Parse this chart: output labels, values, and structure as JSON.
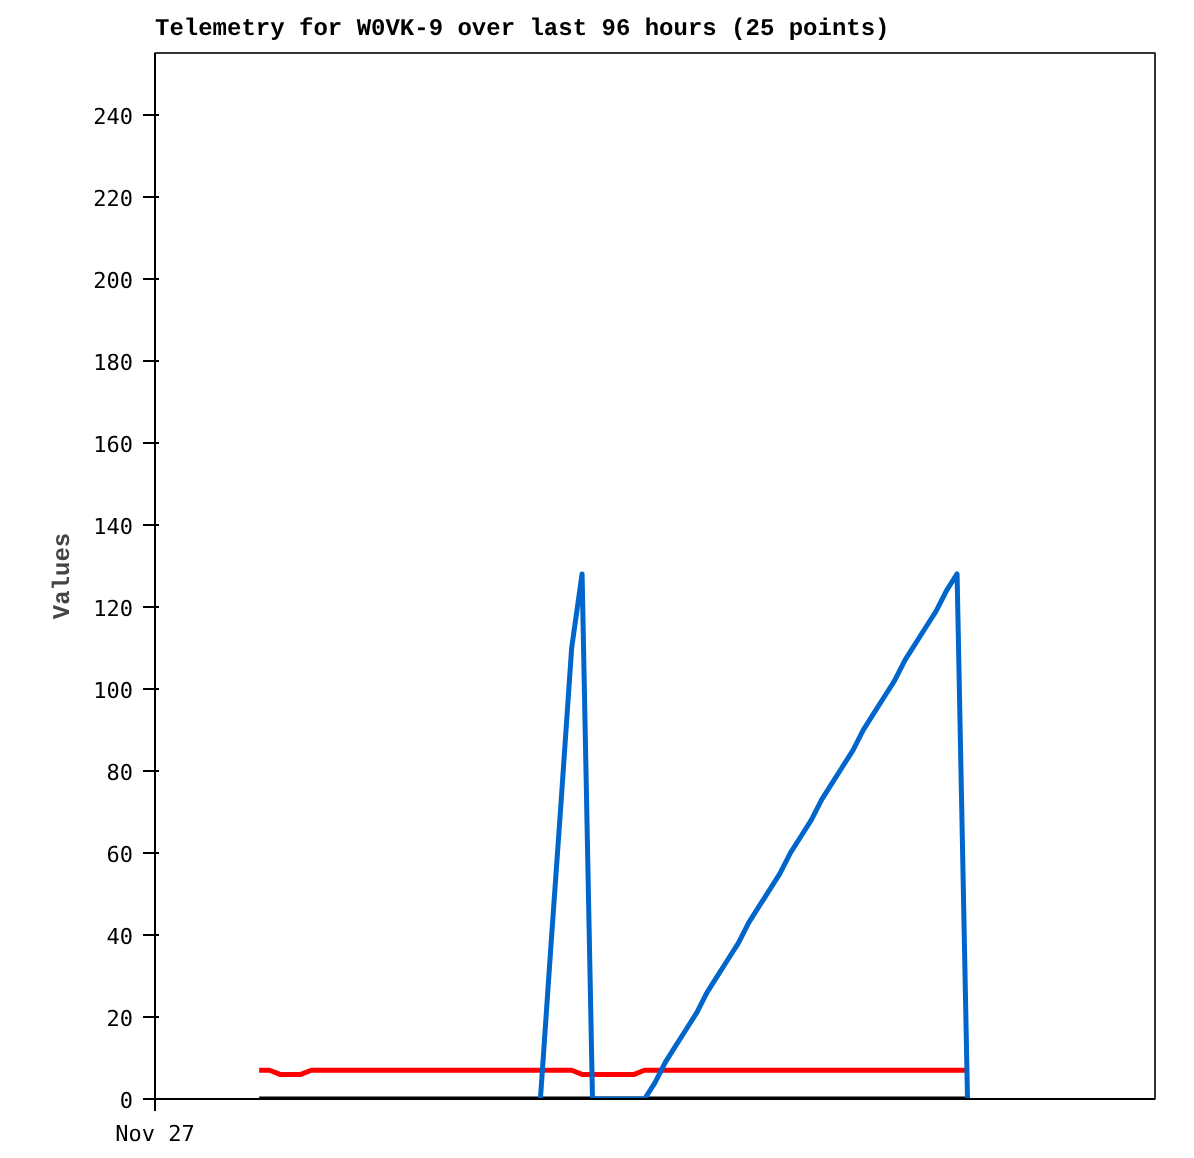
{
  "chart_data": {
    "type": "line",
    "title": "Telemetry for W0VK-9 over last 96 hours (25 points)",
    "ylabel": "Values",
    "categories": [
      "Nov 27",
      null,
      null,
      null,
      null,
      null,
      null,
      null,
      null,
      null,
      null,
      null,
      null,
      null,
      null,
      null,
      null,
      null,
      null,
      null,
      null,
      null,
      null,
      null,
      null,
      null,
      null,
      null,
      null,
      null,
      null,
      null,
      null,
      null,
      null,
      null,
      null,
      null,
      null,
      null,
      null,
      null,
      null,
      null,
      null,
      null,
      null,
      null,
      null,
      null,
      null,
      null,
      null,
      null,
      null,
      null,
      null,
      null,
      null,
      null,
      null,
      null,
      null,
      null,
      null,
      null,
      null,
      null,
      null,
      null,
      null,
      null,
      null,
      null,
      null,
      null,
      null,
      null,
      null,
      null,
      null,
      null,
      null,
      null,
      null,
      null,
      null,
      null,
      null,
      null,
      null,
      null,
      null,
      null,
      null,
      null,
      null
    ],
    "ylim": [
      0,
      255
    ],
    "yticks": [
      0,
      20,
      40,
      60,
      80,
      100,
      120,
      140,
      160,
      180,
      200,
      220,
      240
    ],
    "grid": false,
    "series": [
      {
        "color": "#ff0000",
        "values": [
          null,
          null,
          null,
          null,
          null,
          null,
          null,
          null,
          null,
          null,
          7,
          7,
          6,
          6,
          6,
          7,
          7,
          7,
          7,
          7,
          7,
          7,
          7,
          7,
          7,
          7,
          7,
          7,
          7,
          7,
          7,
          7,
          7,
          7,
          7,
          7,
          7,
          7,
          7,
          7,
          7,
          6,
          6,
          6,
          6,
          6,
          6,
          7,
          7,
          7,
          7,
          7,
          7,
          7,
          7,
          7,
          7,
          7,
          7,
          7,
          7,
          7,
          7,
          7,
          7,
          7,
          7,
          7,
          7,
          7,
          7,
          7,
          7,
          7,
          7,
          7,
          7,
          7,
          7,
          null,
          null,
          null,
          null,
          null,
          null,
          null,
          null,
          null,
          null,
          null,
          null,
          null,
          null,
          null,
          null,
          null,
          null
        ]
      },
      {
        "color": "#000000",
        "values": [
          null,
          null,
          null,
          null,
          null,
          null,
          null,
          null,
          null,
          null,
          0,
          0,
          0,
          0,
          0,
          0,
          0,
          0,
          0,
          0,
          0,
          0,
          0,
          0,
          0,
          0,
          0,
          0,
          0,
          0,
          0,
          0,
          0,
          0,
          0,
          0,
          0,
          0,
          0,
          0,
          0,
          0,
          0,
          0,
          0,
          0,
          0,
          0,
          0,
          0,
          0,
          0,
          0,
          0,
          0,
          0,
          0,
          0,
          0,
          0,
          0,
          0,
          0,
          0,
          0,
          0,
          0,
          0,
          0,
          0,
          0,
          0,
          0,
          0,
          0,
          0,
          0,
          0,
          0,
          null,
          null,
          null,
          null,
          null,
          null,
          null,
          null,
          null,
          null,
          null,
          null,
          null,
          null,
          null,
          null,
          null,
          null
        ]
      },
      {
        "color": "#0066cc",
        "values": [
          null,
          null,
          null,
          null,
          null,
          null,
          null,
          null,
          null,
          null,
          null,
          null,
          null,
          null,
          null,
          null,
          null,
          null,
          null,
          null,
          null,
          null,
          null,
          null,
          null,
          null,
          null,
          null,
          null,
          null,
          null,
          null,
          null,
          null,
          null,
          null,
          null,
          0,
          37,
          73,
          110,
          128,
          0,
          0,
          0,
          0,
          0,
          0,
          4,
          9,
          13,
          17,
          21,
          26,
          30,
          34,
          38,
          43,
          47,
          51,
          55,
          60,
          64,
          68,
          73,
          77,
          81,
          85,
          90,
          94,
          98,
          102,
          107,
          111,
          115,
          119,
          124,
          128,
          0,
          null,
          null,
          null,
          null,
          null,
          null,
          null,
          null,
          null,
          null,
          null,
          null,
          null,
          null,
          null,
          null,
          null,
          null
        ]
      }
    ]
  }
}
